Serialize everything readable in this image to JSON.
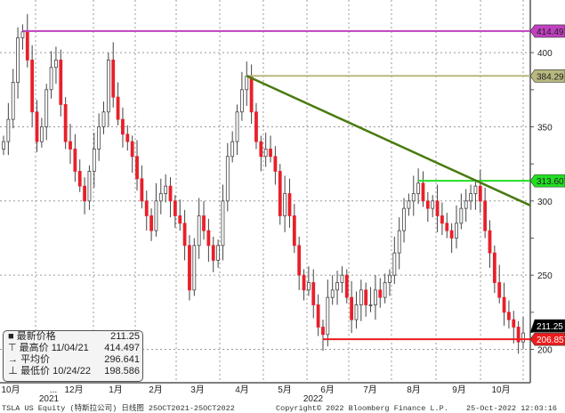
{
  "chart_data": {
    "type": "candlestick",
    "ticker": "TSLA US Equity (特斯拉公司)",
    "period": "日线图 25OCT2021-25OCT2022",
    "ylim": [
      190,
      430
    ],
    "yticks": [
      200,
      250,
      300,
      350,
      400
    ],
    "xticks": [
      "10月",
      "...",
      "12月",
      "1月",
      "2月",
      "3月",
      "4月",
      "5月",
      "6月",
      "7月",
      "8月",
      "9月",
      "10月"
    ],
    "year_labels": [
      "2021",
      "2022"
    ],
    "grid": true,
    "up_color": "#222222",
    "down_color": "#e8202a",
    "close": [
      340,
      355,
      380,
      410,
      414,
      395,
      360,
      340,
      350,
      375,
      390,
      395,
      365,
      340,
      335,
      320,
      310,
      300,
      320,
      335,
      350,
      360,
      395,
      370,
      355,
      345,
      340,
      330,
      315,
      300,
      290,
      280,
      300,
      305,
      310,
      300,
      290,
      285,
      270,
      240,
      270,
      290,
      280,
      270,
      260,
      270,
      300,
      330,
      340,
      360,
      375,
      384,
      360,
      340,
      330,
      335,
      330,
      320,
      290,
      305,
      290,
      270,
      250,
      240,
      245,
      230,
      215,
      210,
      235,
      240,
      245,
      250,
      235,
      220,
      230,
      240,
      230,
      230,
      240,
      235,
      245,
      250,
      265,
      280,
      295,
      300,
      305,
      312,
      300,
      295,
      300,
      290,
      285,
      280,
      275,
      285,
      295,
      300,
      305,
      310,
      300,
      280,
      265,
      245,
      235,
      225,
      220,
      215,
      205,
      211
    ],
    "levels": [
      {
        "label": "414.497",
        "value": 414.497,
        "color": "#c040c0",
        "start_index": 4
      },
      {
        "label": "384.29",
        "value": 384.29,
        "color": "#b8b880",
        "start_index": 51
      },
      {
        "label": "313.607",
        "value": 313.607,
        "color": "#22dd22",
        "start_index": 87
      },
      {
        "label": "206.857",
        "value": 206.857,
        "color": "#ee1c1c",
        "start_index": 67
      }
    ],
    "trendline": {
      "from": [
        51,
        384.29
      ],
      "to": [
        110,
        297
      ],
      "color": "#4a7a10"
    },
    "last_price": {
      "label": "211.25",
      "value": 211.25
    },
    "legend": [
      {
        "name": "最新价格",
        "date": "",
        "value": "211.25"
      },
      {
        "name": "最高价",
        "date": "11/04/21",
        "value": "414.497"
      },
      {
        "name": "平均价",
        "date": "",
        "value": "296.641"
      },
      {
        "name": "最低价",
        "date": "10/24/22",
        "value": "198.586"
      }
    ]
  },
  "footer": {
    "left": "TSLA US Equity (特斯拉公司)  日线图 25OCT2021-25OCT2022",
    "center": "Copyright© 2022 Bloomberg Finance L.P.",
    "right": "25-Oct-2022 12:03:16"
  }
}
